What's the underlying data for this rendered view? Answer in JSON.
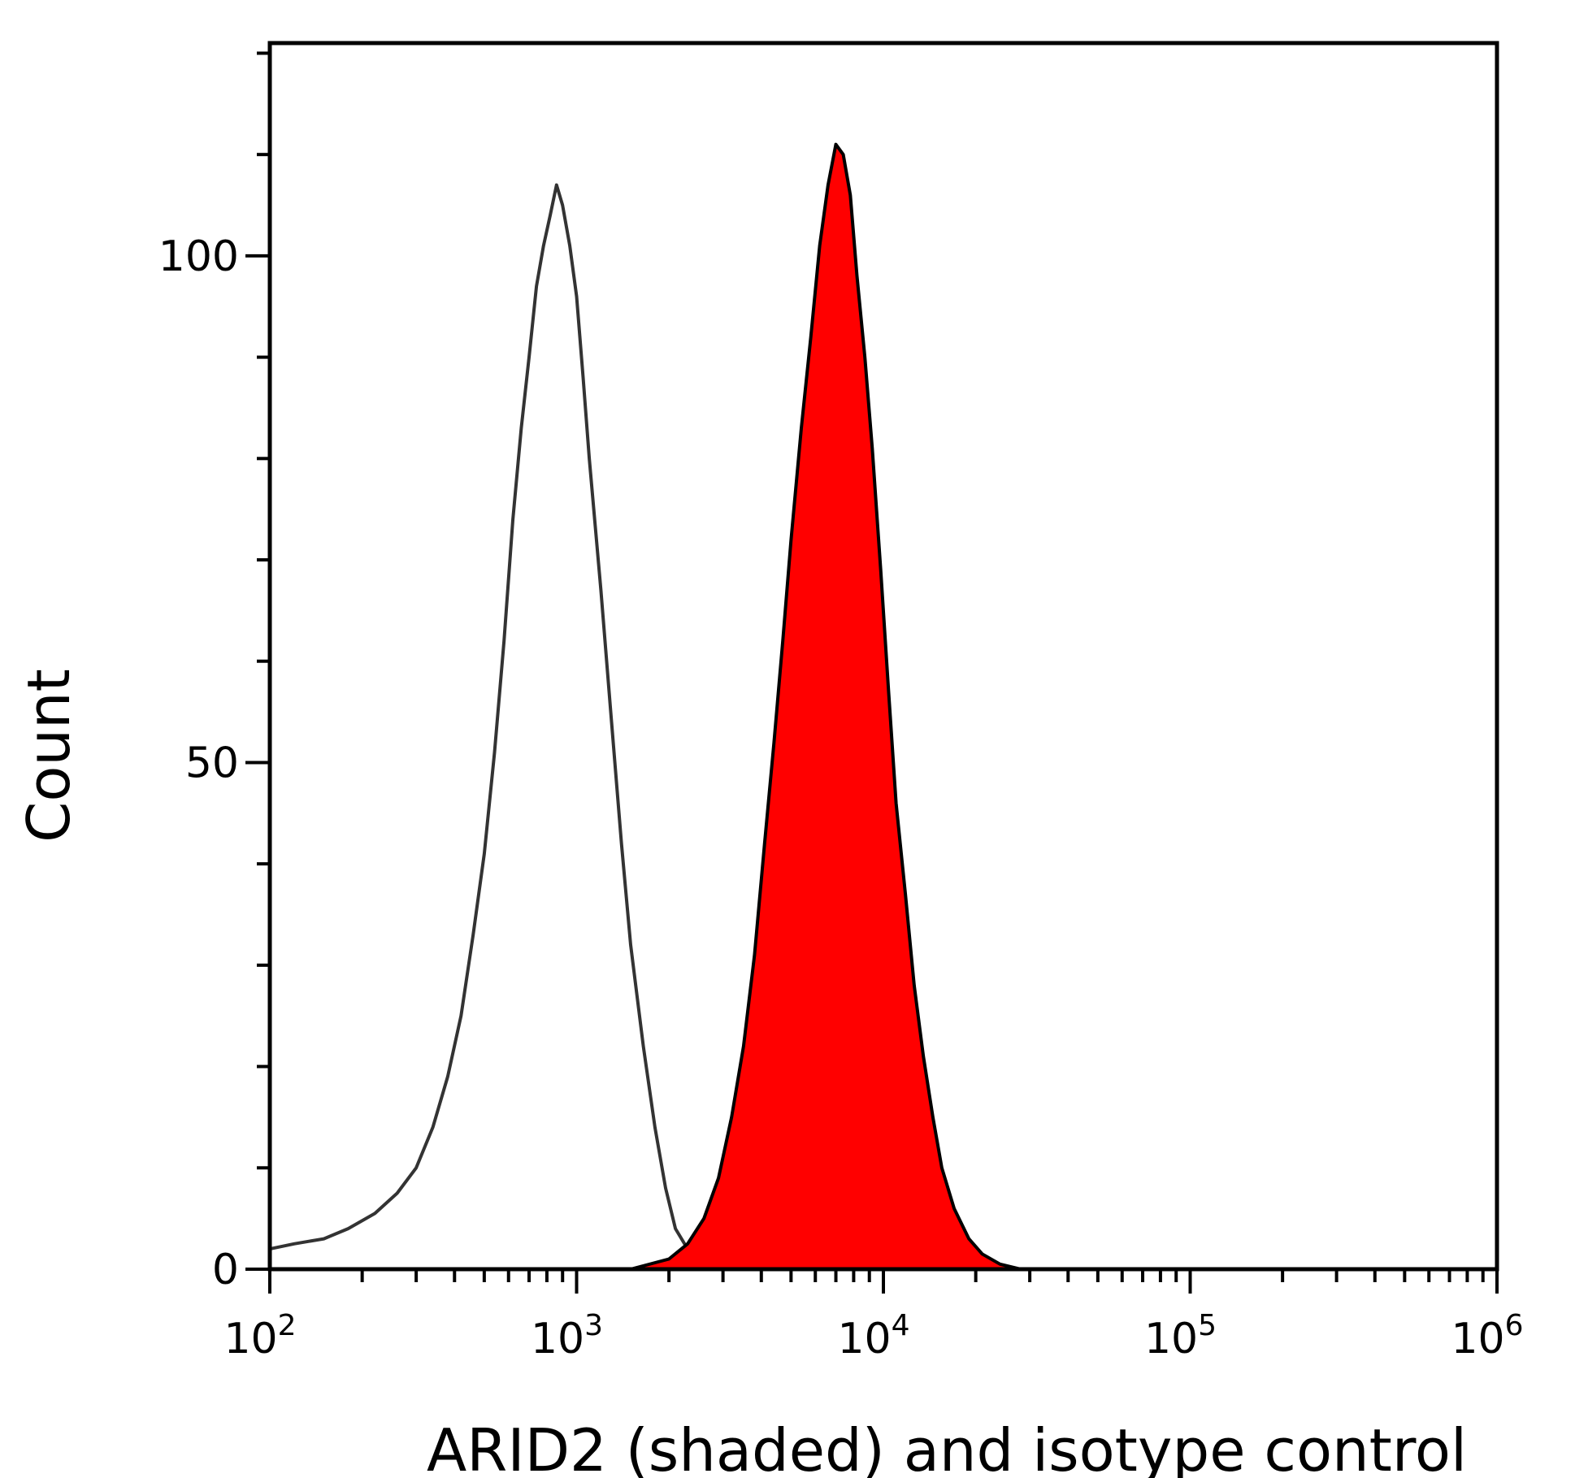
{
  "chart_data": {
    "type": "area",
    "title": "",
    "xlabel": "ARID2 (shaded) and isotype control",
    "ylabel": "Count",
    "x_scale": "log10",
    "xlim": [
      100,
      1000000
    ],
    "ylim": [
      0,
      121
    ],
    "x_ticks": [
      {
        "base": "10",
        "exp": "2"
      },
      {
        "base": "10",
        "exp": "3"
      },
      {
        "base": "10",
        "exp": "4"
      },
      {
        "base": "10",
        "exp": "5"
      },
      {
        "base": "10",
        "exp": "6"
      }
    ],
    "y_ticks": [
      "0",
      "50",
      "100"
    ],
    "grid": false,
    "legend": "none",
    "series": [
      {
        "role": "isotype-control",
        "style": "outline",
        "color": "#333333",
        "x": [
          100,
          120,
          150,
          180,
          220,
          260,
          300,
          340,
          380,
          420,
          460,
          500,
          540,
          580,
          620,
          660,
          700,
          740,
          780,
          820,
          860,
          900,
          950,
          1000,
          1050,
          1100,
          1200,
          1300,
          1400,
          1500,
          1650,
          1800,
          1950,
          2100,
          2300,
          2600,
          3000,
          4000,
          6000
        ],
        "y": [
          2,
          2.5,
          3,
          4,
          5.5,
          7.5,
          10,
          14,
          19,
          25,
          33,
          41,
          51,
          62,
          74,
          83,
          90,
          97,
          101,
          104,
          107,
          105,
          101,
          96,
          88,
          80,
          67,
          54,
          42,
          32,
          22,
          14,
          8,
          4,
          2,
          1,
          0.5,
          0.2,
          0
        ]
      },
      {
        "role": "ARID2",
        "style": "shaded",
        "color": "#ff0000",
        "stroke": "#000000",
        "x": [
          1500,
          2000,
          2300,
          2600,
          2900,
          3200,
          3500,
          3800,
          4100,
          4400,
          4700,
          5000,
          5400,
          5800,
          6200,
          6600,
          7000,
          7400,
          7800,
          8200,
          8700,
          9200,
          9800,
          10400,
          11000,
          11800,
          12600,
          13500,
          14500,
          15500,
          17000,
          19000,
          21000,
          24000,
          28000
        ],
        "y": [
          0,
          1,
          2.5,
          5,
          9,
          15,
          22,
          31,
          42,
          52,
          62,
          72,
          83,
          92,
          101,
          107,
          111,
          110,
          106,
          98,
          90,
          81,
          69,
          57,
          46,
          37,
          28,
          21,
          15,
          10,
          6,
          3,
          1.5,
          0.5,
          0
        ]
      }
    ]
  }
}
